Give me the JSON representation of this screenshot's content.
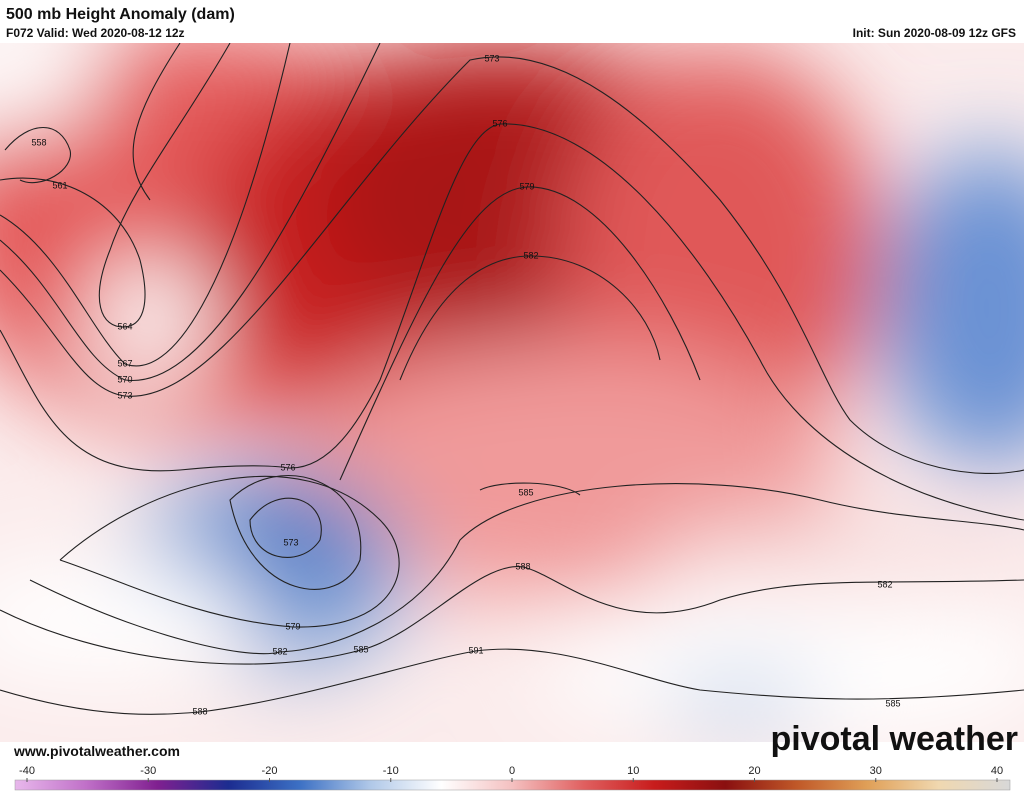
{
  "header": {
    "title": "500 mb Height Anomaly (dam)",
    "valid": "F072 Valid: Wed 2020-08-12 12z",
    "init": "Init: Sun 2020-08-09 12z GFS"
  },
  "map": {
    "contour_labels": [
      573,
      576,
      579,
      582,
      558,
      561,
      564,
      567,
      570,
      573,
      576,
      573,
      579,
      582,
      585,
      588,
      591,
      588,
      585,
      582,
      585
    ]
  },
  "footer": {
    "website": "www.pivotalweather.com",
    "logo": "pivotal weather"
  },
  "colorbar": {
    "range": [
      -40,
      40
    ],
    "ticks": [
      -40,
      -30,
      -20,
      -10,
      0,
      10,
      20,
      30,
      40
    ],
    "colors": [
      "#e8b8ec",
      "#c070c8",
      "#802090",
      "#1c2c90",
      "#3c70c4",
      "#b0c8e8",
      "#ffffff",
      "#f4c0c0",
      "#e06060",
      "#c81c1c",
      "#8a1010",
      "#c05828",
      "#e0a058",
      "#f0d8b0",
      "#d8d8d8"
    ]
  }
}
